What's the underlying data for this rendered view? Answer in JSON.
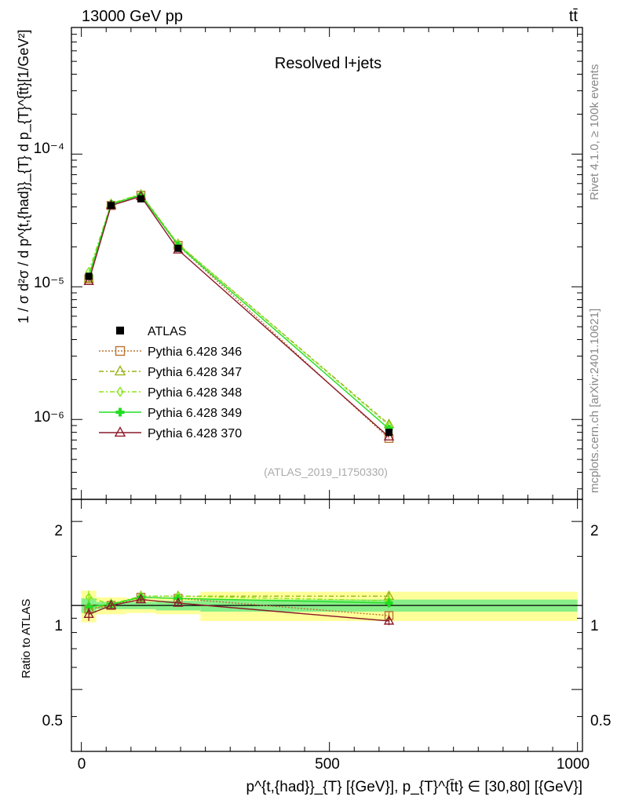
{
  "header": {
    "energy": "13000 GeV pp",
    "process": "tt̄"
  },
  "main_panel": {
    "title": "Resolved l+jets",
    "ylabel": "1 / σ d²σ / d p^{t,{had}}_{T} d p_{T}^{t̄t}[1/GeV²]",
    "ytick_labels": [
      "10⁻⁴",
      "10⁻⁵",
      "10⁻⁶"
    ],
    "analysis_id": "(ATLAS_2019_I1750330)"
  },
  "ratio_panel": {
    "ylabel": "Ratio to ATLAS",
    "ytick_labels_left": [
      "2",
      "1",
      "0.5"
    ],
    "ytick_labels_right": [
      "2",
      "1",
      "0.5"
    ]
  },
  "xaxis": {
    "label": "p^{t,{had}}_{T} [{GeV}], p_{T}^{t̄t} ∈ [30,80] [{GeV}]",
    "tick_labels": [
      "0",
      "500",
      "1000"
    ]
  },
  "side_labels": {
    "rivet": "Rivet 4.1.0, ≥ 100k events",
    "source": "mcplots.cern.ch [arXiv:2401.10621]"
  },
  "legend": [
    {
      "label": "ATLAS",
      "color": "#000000",
      "marker": "filled-square",
      "dash": ""
    },
    {
      "label": "Pythia 6.428 346",
      "color": "#b87333",
      "marker": "open-square",
      "dash": "2,2"
    },
    {
      "label": "Pythia 6.428 347",
      "color": "#99b31a",
      "marker": "open-triangle",
      "dash": "6,3,2,3"
    },
    {
      "label": "Pythia 6.428 348",
      "color": "#88e61a",
      "marker": "open-diamond",
      "dash": "6,3,2,3"
    },
    {
      "label": "Pythia 6.428 349",
      "color": "#22dd22",
      "marker": "cross",
      "dash": ""
    },
    {
      "label": "Pythia 6.428 370",
      "color": "#8b1a2a",
      "marker": "open-triangle",
      "dash": ""
    }
  ],
  "chart_data": {
    "type": "line",
    "xscale": "linear",
    "yscale": "log",
    "xlim": [
      -20,
      1010
    ],
    "ylim": [
      2.5e-07,
      0.0009
    ],
    "ratio_ylim": [
      0.3,
      2.4
    ],
    "x": [
      15,
      60,
      120,
      195,
      620
    ],
    "x_bin_edges": [
      0,
      30,
      90,
      150,
      240,
      1000
    ],
    "data": {
      "name": "ATLAS",
      "values": [
        1.2e-05,
        4.1e-05,
        4.6e-05,
        1.95e-05,
        8e-07
      ],
      "errors": [
        5e-07,
        5e-07,
        5e-07,
        5e-07,
        5e-08
      ],
      "band_inner": [
        0.06,
        0.03,
        0.03,
        0.04,
        0.05
      ],
      "band_outer": [
        0.13,
        0.07,
        0.06,
        0.07,
        0.12
      ]
    },
    "series": [
      {
        "name": "Pythia 6.428 346",
        "values": [
          1.15e-05,
          4.1e-05,
          4.9e-05,
          2.05e-05,
          7.2e-07
        ],
        "ratio": [
          0.97,
          1.0,
          1.07,
          1.06,
          0.92
        ],
        "ratio_err": [
          0.05,
          0.02,
          0.02,
          0.02,
          0.03
        ]
      },
      {
        "name": "Pythia 6.428 347",
        "values": [
          1.15e-05,
          4.2e-05,
          4.95e-05,
          2.1e-05,
          9.2e-07
        ],
        "ratio": [
          0.97,
          1.01,
          1.08,
          1.08,
          1.08
        ],
        "ratio_err": [
          0.05,
          0.02,
          0.02,
          0.02,
          0.04
        ]
      },
      {
        "name": "Pythia 6.428 348",
        "values": [
          1.3e-05,
          4.25e-05,
          5e-05,
          2.1e-05,
          9e-07
        ],
        "ratio": [
          1.07,
          1.01,
          1.08,
          1.08,
          1.04
        ],
        "ratio_err": [
          0.06,
          0.02,
          0.02,
          0.02,
          0.04
        ]
      },
      {
        "name": "Pythia 6.428 349",
        "values": [
          1.2e-05,
          4.2e-05,
          4.9e-05,
          2.05e-05,
          8.5e-07
        ],
        "ratio": [
          0.99,
          1.01,
          1.07,
          1.06,
          1.02
        ],
        "ratio_err": [
          0.05,
          0.02,
          0.02,
          0.02,
          0.04
        ]
      },
      {
        "name": "Pythia 6.428 370",
        "values": [
          1.1e-05,
          4.1e-05,
          4.8e-05,
          1.9e-05,
          7.4e-07
        ],
        "ratio": [
          0.93,
          1.0,
          1.05,
          1.02,
          0.88
        ],
        "ratio_err": [
          0.05,
          0.02,
          0.02,
          0.02,
          0.03
        ]
      }
    ]
  }
}
